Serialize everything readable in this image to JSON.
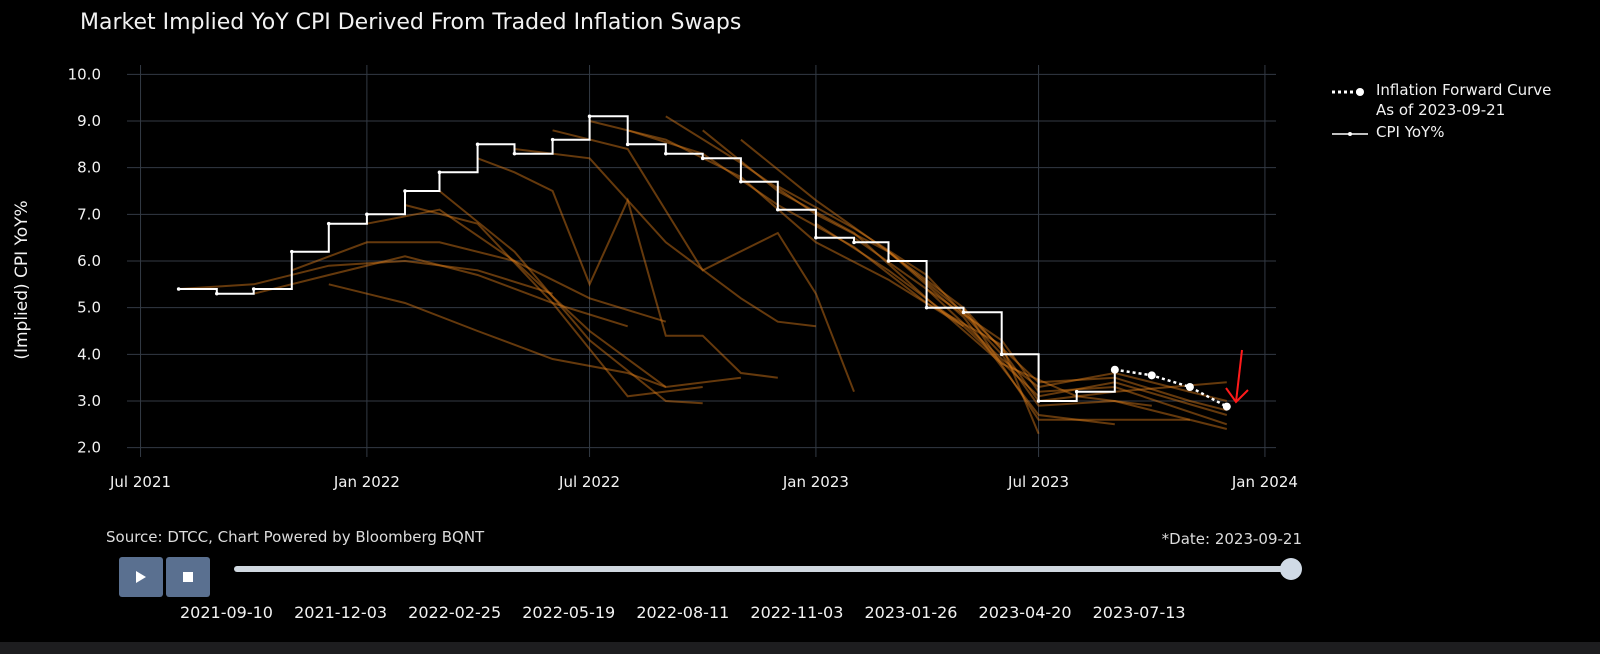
{
  "title": "Market Implied YoY CPI Derived From Traded Inflation Swaps",
  "legend": {
    "forward_curve_line1": "Inflation Forward Curve",
    "forward_curve_line2": "As of 2023-09-21",
    "cpi": "CPI YoY%"
  },
  "source": "Source: DTCC, Chart Powered by Bloomberg BQNT",
  "date_label": "*Date: 2023-09-21",
  "controls": {
    "play_icon": "play-icon",
    "stop_icon": "stop-icon",
    "slider_steps": [
      "2021-09-10",
      "2021-12-03",
      "2022-02-25",
      "2022-05-19",
      "2022-08-11",
      "2022-11-03",
      "2023-01-26",
      "2023-04-20",
      "2023-07-13"
    ]
  },
  "colors": {
    "background": "#000000",
    "grid": "#333a44",
    "cpi_line": "#ffffff",
    "forward_curve": "#ffffff",
    "history": "#e07f1a",
    "annotation": "#ff1a1a",
    "button": "#5a7090"
  },
  "chart_data": {
    "type": "line",
    "title": "Market Implied YoY CPI Derived From Traded Inflation Swaps",
    "xlabel": "",
    "ylabel": "(Implied) CPI YoY%",
    "ylim": [
      1.8,
      10.2
    ],
    "yticks": [
      "2.0",
      "3.0",
      "4.0",
      "5.0",
      "6.0",
      "7.0",
      "8.0",
      "9.0",
      "10.0"
    ],
    "xlim": [
      "2021-06-20",
      "2024-01-10"
    ],
    "xticks": [
      {
        "date": "2021-07-01",
        "label": "Jul 2021"
      },
      {
        "date": "2022-01-01",
        "label": "Jan 2022"
      },
      {
        "date": "2022-07-01",
        "label": "Jul 2022"
      },
      {
        "date": "2023-01-01",
        "label": "Jan 2023"
      },
      {
        "date": "2023-07-01",
        "label": "Jul 2023"
      },
      {
        "date": "2024-01-01",
        "label": "Jan 2024"
      }
    ],
    "series": [
      {
        "name": "CPI YoY%",
        "style": "step",
        "points": [
          [
            "2021-08-01",
            5.4
          ],
          [
            "2021-09-01",
            5.3
          ],
          [
            "2021-10-01",
            5.4
          ],
          [
            "2021-11-01",
            6.2
          ],
          [
            "2021-12-01",
            6.8
          ],
          [
            "2022-01-01",
            7.0
          ],
          [
            "2022-02-01",
            7.5
          ],
          [
            "2022-03-01",
            7.9
          ],
          [
            "2022-04-01",
            8.5
          ],
          [
            "2022-05-01",
            8.3
          ],
          [
            "2022-06-01",
            8.6
          ],
          [
            "2022-07-01",
            9.1
          ],
          [
            "2022-08-01",
            8.5
          ],
          [
            "2022-09-01",
            8.3
          ],
          [
            "2022-10-01",
            8.2
          ],
          [
            "2022-11-01",
            7.7
          ],
          [
            "2022-12-01",
            7.1
          ],
          [
            "2023-01-01",
            6.5
          ],
          [
            "2023-02-01",
            6.4
          ],
          [
            "2023-03-01",
            6.0
          ],
          [
            "2023-04-01",
            5.0
          ],
          [
            "2023-05-01",
            4.9
          ],
          [
            "2023-06-01",
            4.0
          ],
          [
            "2023-07-01",
            3.0
          ],
          [
            "2023-08-01",
            3.2
          ],
          [
            "2023-09-01",
            3.7
          ]
        ]
      },
      {
        "name": "Inflation Forward Curve As of 2023-09-21",
        "style": "dotted",
        "points": [
          [
            "2023-09-01",
            3.67
          ],
          [
            "2023-10-01",
            3.55
          ],
          [
            "2023-11-01",
            3.3
          ],
          [
            "2023-12-01",
            2.88
          ]
        ]
      }
    ],
    "history_curves": [
      [
        [
          "2021-08-01",
          5.4
        ],
        [
          "2021-10-01",
          5.5
        ],
        [
          "2021-12-01",
          5.9
        ],
        [
          "2022-02-01",
          6.0
        ],
        [
          "2022-04-01",
          5.8
        ],
        [
          "2022-06-01",
          5.3
        ]
      ],
      [
        [
          "2021-10-01",
          5.3
        ],
        [
          "2021-12-01",
          5.7
        ],
        [
          "2022-02-01",
          6.1
        ],
        [
          "2022-04-01",
          5.7
        ],
        [
          "2022-06-01",
          5.1
        ],
        [
          "2022-08-01",
          4.6
        ]
      ],
      [
        [
          "2021-11-01",
          5.8
        ],
        [
          "2022-01-01",
          6.4
        ],
        [
          "2022-03-01",
          6.4
        ],
        [
          "2022-05-01",
          6.0
        ],
        [
          "2022-07-01",
          5.2
        ],
        [
          "2022-09-01",
          4.7
        ]
      ],
      [
        [
          "2021-12-01",
          5.5
        ],
        [
          "2022-02-01",
          5.1
        ],
        [
          "2022-04-01",
          4.5
        ],
        [
          "2022-06-01",
          3.9
        ],
        [
          "2022-08-01",
          3.6
        ],
        [
          "2022-09-01",
          3.3
        ]
      ],
      [
        [
          "2022-01-01",
          6.8
        ],
        [
          "2022-03-01",
          7.1
        ],
        [
          "2022-05-01",
          6.0
        ],
        [
          "2022-07-01",
          4.5
        ],
        [
          "2022-09-01",
          3.3
        ],
        [
          "2022-11-01",
          3.5
        ]
      ],
      [
        [
          "2022-02-01",
          7.2
        ],
        [
          "2022-04-01",
          6.8
        ],
        [
          "2022-06-01",
          5.1
        ],
        [
          "2022-08-01",
          3.1
        ],
        [
          "2022-10-01",
          3.3
        ]
      ],
      [
        [
          "2022-03-01",
          7.5
        ],
        [
          "2022-05-01",
          6.2
        ],
        [
          "2022-07-01",
          4.3
        ],
        [
          "2022-09-01",
          3.0
        ],
        [
          "2022-10-01",
          2.95
        ]
      ],
      [
        [
          "2022-04-01",
          8.2
        ],
        [
          "2022-05-01",
          7.9
        ],
        [
          "2022-06-01",
          7.5
        ],
        [
          "2022-07-01",
          5.5
        ],
        [
          "2022-08-01",
          7.3
        ],
        [
          "2022-09-01",
          4.4
        ],
        [
          "2022-10-01",
          4.4
        ],
        [
          "2022-11-01",
          3.6
        ],
        [
          "2022-12-01",
          3.5
        ]
      ],
      [
        [
          "2022-05-01",
          8.4
        ],
        [
          "2022-07-01",
          8.2
        ],
        [
          "2022-09-01",
          6.4
        ],
        [
          "2022-11-01",
          5.2
        ],
        [
          "2022-12-01",
          4.7
        ],
        [
          "2023-01-01",
          4.6
        ]
      ],
      [
        [
          "2022-06-01",
          8.8
        ],
        [
          "2022-08-01",
          8.4
        ],
        [
          "2022-10-01",
          5.8
        ],
        [
          "2022-12-01",
          6.6
        ],
        [
          "2023-01-01",
          5.3
        ],
        [
          "2023-02-01",
          3.2
        ]
      ],
      [
        [
          "2022-07-01",
          9.0
        ],
        [
          "2022-09-01",
          8.6
        ],
        [
          "2022-11-01",
          7.8
        ],
        [
          "2023-01-01",
          6.4
        ],
        [
          "2023-03-01",
          5.6
        ],
        [
          "2023-05-01",
          4.6
        ]
      ],
      [
        [
          "2022-08-01",
          8.8
        ],
        [
          "2022-10-01",
          8.3
        ],
        [
          "2022-12-01",
          7.2
        ],
        [
          "2023-02-01",
          6.3
        ],
        [
          "2023-04-01",
          5.1
        ],
        [
          "2023-06-01",
          4.2
        ],
        [
          "2023-07-01",
          2.3
        ]
      ],
      [
        [
          "2022-09-01",
          9.1
        ],
        [
          "2022-11-01",
          8.1
        ],
        [
          "2023-01-01",
          7.0
        ],
        [
          "2023-03-01",
          6.2
        ],
        [
          "2023-05-01",
          4.8
        ],
        [
          "2023-07-01",
          2.7
        ],
        [
          "2023-09-01",
          2.5
        ]
      ],
      [
        [
          "2022-10-01",
          8.8
        ],
        [
          "2022-12-01",
          7.5
        ],
        [
          "2023-02-01",
          6.6
        ],
        [
          "2023-04-01",
          5.2
        ],
        [
          "2023-06-01",
          3.8
        ],
        [
          "2023-08-01",
          3.1
        ],
        [
          "2023-10-01",
          2.9
        ]
      ],
      [
        [
          "2022-11-01",
          8.6
        ],
        [
          "2023-01-01",
          7.3
        ],
        [
          "2023-03-01",
          6.2
        ],
        [
          "2023-05-01",
          5.0
        ],
        [
          "2023-07-01",
          2.6
        ],
        [
          "2023-09-01",
          2.6
        ],
        [
          "2023-11-01",
          2.6
        ]
      ],
      [
        [
          "2022-12-01",
          7.6
        ],
        [
          "2023-02-01",
          6.7
        ],
        [
          "2023-04-01",
          5.7
        ],
        [
          "2023-06-01",
          4.0
        ],
        [
          "2023-07-01",
          2.9
        ],
        [
          "2023-09-01",
          3.0
        ],
        [
          "2023-12-01",
          2.4
        ]
      ],
      [
        [
          "2023-01-01",
          6.8
        ],
        [
          "2023-03-01",
          5.8
        ],
        [
          "2023-05-01",
          4.6
        ],
        [
          "2023-07-01",
          3.1
        ],
        [
          "2023-09-01",
          3.4
        ],
        [
          "2023-12-01",
          2.7
        ]
      ],
      [
        [
          "2023-02-01",
          6.5
        ],
        [
          "2023-04-01",
          5.4
        ],
        [
          "2023-06-01",
          3.9
        ],
        [
          "2023-07-01",
          3.3
        ],
        [
          "2023-09-01",
          3.6
        ],
        [
          "2023-12-01",
          3.0
        ]
      ],
      [
        [
          "2023-03-01",
          6.2
        ],
        [
          "2023-05-01",
          4.9
        ],
        [
          "2023-07-01",
          3.4
        ],
        [
          "2023-09-01",
          3.5
        ],
        [
          "2023-11-01",
          3.0
        ],
        [
          "2023-12-01",
          2.8
        ]
      ],
      [
        [
          "2023-04-01",
          5.4
        ],
        [
          "2023-06-01",
          4.3
        ],
        [
          "2023-07-01",
          3.2
        ],
        [
          "2023-09-01",
          3.3
        ],
        [
          "2023-12-01",
          2.5
        ]
      ],
      [
        [
          "2023-05-01",
          5.0
        ],
        [
          "2023-06-01",
          4.1
        ],
        [
          "2023-07-01",
          3.0
        ],
        [
          "2023-09-01",
          3.2
        ],
        [
          "2023-12-01",
          3.4
        ]
      ]
    ]
  }
}
